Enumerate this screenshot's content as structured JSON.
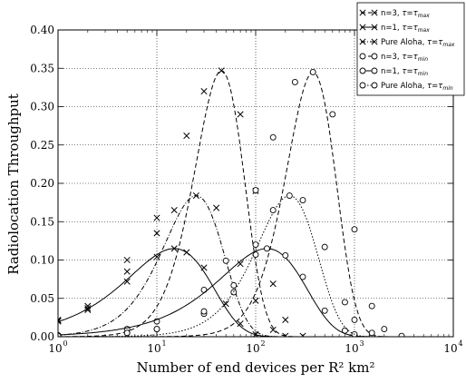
{
  "chart_data": {
    "type": "line",
    "title": "",
    "xlabel": "Number of end devices per R² km²",
    "ylabel": "Radiolocation Throughput",
    "xscale": "log",
    "xlim": [
      1,
      10000
    ],
    "ylim": [
      0,
      0.4
    ],
    "x_ticks": [
      1,
      10,
      100,
      1000,
      10000
    ],
    "x_tick_labels": [
      "10",
      "10",
      "10",
      "10",
      "10"
    ],
    "x_tick_exponents": [
      "0",
      "1",
      "2",
      "3",
      "4"
    ],
    "y_ticks": [
      0,
      0.05,
      0.1,
      0.15,
      0.2,
      0.25,
      0.3,
      0.35,
      0.4
    ],
    "y_tick_labels": [
      "0.00",
      "0.05",
      "0.10",
      "0.15",
      "0.20",
      "0.25",
      "0.30",
      "0.35",
      "0.40"
    ],
    "grid": true,
    "legend_position": "top-right",
    "series": [
      {
        "name": "n=3, τ=τmax",
        "legend_main": "n=3, ",
        "legend_tau": "τ=τ",
        "legend_sub": "max",
        "marker": "x",
        "linestyle": "dashed",
        "model": {
          "peak_x": 45,
          "peak_y": 0.347,
          "k": 3
        },
        "x": [
          1,
          2,
          5,
          10,
          20,
          30,
          45,
          70,
          100,
          150,
          200,
          300
        ],
        "y": [
          0.022,
          0.04,
          0.1,
          0.155,
          0.262,
          0.32,
          0.347,
          0.29,
          0.19,
          0.069,
          0.022,
          0.001
        ]
      },
      {
        "name": "n=1, τ=τmax",
        "legend_main": "n=1, ",
        "legend_tau": "τ=τ",
        "legend_sub": "max",
        "marker": "x",
        "linestyle": "solid",
        "model": {
          "peak_x": 15,
          "peak_y": 0.115,
          "k": 1
        },
        "x": [
          1,
          2,
          5,
          10,
          15,
          20,
          30,
          50,
          70,
          100
        ],
        "y": [
          0.02,
          0.035,
          0.072,
          0.104,
          0.115,
          0.11,
          0.09,
          0.043,
          0.017,
          0.003
        ]
      },
      {
        "name": "Pure Aloha, τ=τmax",
        "legend_main": "Pure Aloha, ",
        "legend_tau": "τ=τ",
        "legend_sub": "max",
        "marker": "x",
        "linestyle": "dashdot",
        "model": {
          "peak_x": 25,
          "peak_y": 0.184,
          "k": 2
        },
        "x": [
          1,
          2,
          5,
          10,
          15,
          25,
          40,
          70,
          100,
          150,
          200
        ],
        "y": [
          0.021,
          0.037,
          0.085,
          0.135,
          0.165,
          0.184,
          0.168,
          0.095,
          0.047,
          0.009,
          0.001
        ]
      },
      {
        "name": "n=3, τ=τmin",
        "legend_main": "n=3, ",
        "legend_tau": "τ=τ",
        "legend_sub": "min",
        "marker": "o",
        "linestyle": "dashed",
        "model": {
          "peak_x": 380,
          "peak_y": 0.345,
          "k": 3
        },
        "x": [
          1,
          5,
          10,
          30,
          50,
          100,
          150,
          250,
          380,
          600,
          1000,
          1500,
          2000,
          3000
        ],
        "y": [
          0.002,
          0.01,
          0.02,
          0.061,
          0.099,
          0.191,
          0.26,
          0.332,
          0.345,
          0.29,
          0.14,
          0.04,
          0.01,
          0.001
        ]
      },
      {
        "name": "n=1, τ=τmin",
        "legend_main": "n=1, ",
        "legend_tau": "τ=τ",
        "legend_sub": "min",
        "marker": "o",
        "linestyle": "solid",
        "model": {
          "peak_x": 130,
          "peak_y": 0.115,
          "k": 1
        },
        "x": [
          1,
          5,
          10,
          30,
          60,
          100,
          130,
          200,
          300,
          500,
          800,
          1000,
          1500
        ],
        "y": [
          0.001,
          0.005,
          0.01,
          0.03,
          0.058,
          0.107,
          0.115,
          0.106,
          0.078,
          0.034,
          0.008,
          0.003,
          0.001
        ]
      },
      {
        "name": "Pure Aloha, τ=τmin",
        "legend_main": "Pure Aloha, ",
        "legend_tau": "τ=τ",
        "legend_sub": "min",
        "marker": "o",
        "linestyle": "dotted",
        "model": {
          "peak_x": 220,
          "peak_y": 0.184,
          "k": 2
        },
        "x": [
          1,
          5,
          10,
          30,
          60,
          100,
          150,
          220,
          300,
          500,
          800,
          1000,
          1500
        ],
        "y": [
          0.001,
          0.005,
          0.01,
          0.033,
          0.067,
          0.12,
          0.165,
          0.184,
          0.178,
          0.117,
          0.045,
          0.022,
          0.005
        ]
      }
    ]
  }
}
